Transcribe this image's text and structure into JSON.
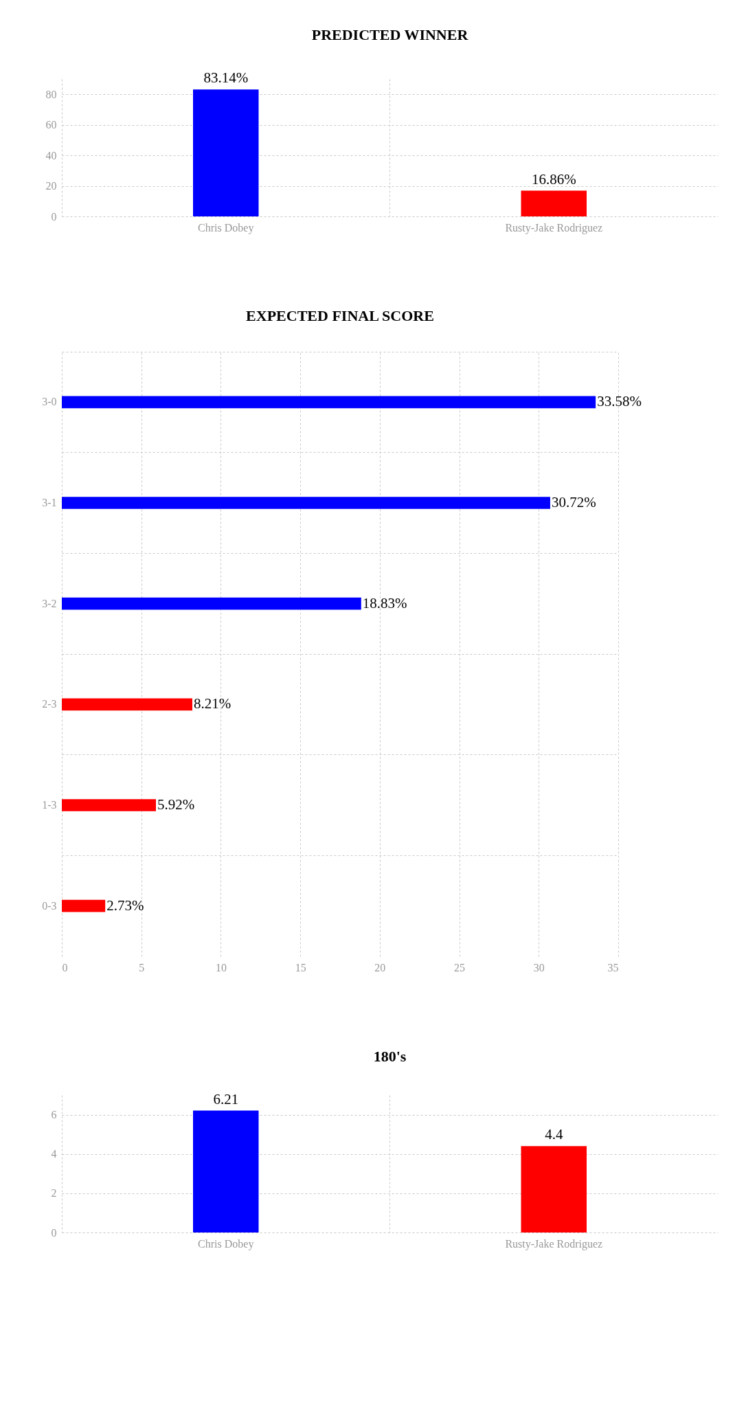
{
  "chart_data": [
    {
      "type": "bar",
      "title": "PREDICTED WINNER",
      "categories": [
        "Chris Dobey",
        "Rusty-Jake Rodriguez"
      ],
      "values": [
        83.14,
        16.86
      ],
      "colors": [
        "#0000ff",
        "#ff0000"
      ],
      "value_labels": [
        "83.14%",
        "16.86%"
      ],
      "ylim": [
        0,
        90
      ],
      "yticks": [
        0,
        20,
        40,
        60,
        80
      ],
      "grid": true
    },
    {
      "type": "bar",
      "orientation": "horizontal",
      "title": "EXPECTED FINAL SCORE",
      "categories": [
        "3-0",
        "3-1",
        "3-2",
        "2-3",
        "1-3",
        "0-3"
      ],
      "values": [
        33.58,
        30.72,
        18.83,
        8.21,
        5.92,
        2.73
      ],
      "colors": [
        "#0000ff",
        "#0000ff",
        "#0000ff",
        "#ff0000",
        "#ff0000",
        "#ff0000"
      ],
      "value_labels": [
        "33.58%",
        "30.72%",
        "18.83%",
        "8.21%",
        "5.92%",
        "2.73%"
      ],
      "xlim": [
        0,
        35
      ],
      "xticks": [
        0,
        5,
        10,
        15,
        20,
        25,
        30,
        35
      ],
      "grid": true
    },
    {
      "type": "bar",
      "title": "180's",
      "categories": [
        "Chris Dobey",
        "Rusty-Jake Rodriguez"
      ],
      "values": [
        6.21,
        4.4
      ],
      "colors": [
        "#0000ff",
        "#ff0000"
      ],
      "data_labels": true,
      "ylim": [
        0,
        7
      ],
      "yticks": [
        0,
        2,
        4,
        6
      ],
      "grid": true
    }
  ]
}
